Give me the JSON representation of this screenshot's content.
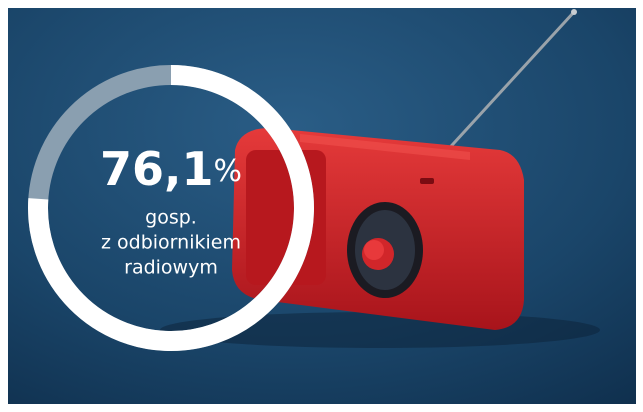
{
  "chart_data": {
    "type": "gauge",
    "values": [
      76.1
    ],
    "value_labels": [
      "76,1%"
    ],
    "label_lines": [
      "gosp.",
      "z odbiornikiem",
      "radiowym"
    ],
    "ylim": [
      0,
      100
    ],
    "color": "#ffffff",
    "track_color": "#8a9fb0"
  }
}
